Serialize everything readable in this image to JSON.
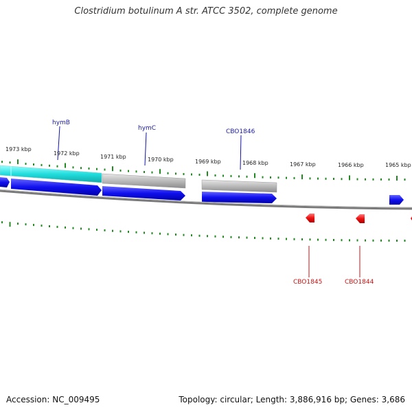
{
  "title": "Clostridium botulinum A str. ATCC 3502, complete genome",
  "footer": {
    "accession": "Accession: NC_009495",
    "topology": "Topology: circular; Length: 3,886,916 bp; Genes: 3,686"
  },
  "scale": {
    "ticks": [
      "1973 kbp",
      "1972 kbp",
      "1971 kbp",
      "1970 kbp",
      "1969 kbp",
      "1968 kbp",
      "1967 kbp",
      "1966 kbp",
      "1965 kbp"
    ]
  },
  "genes": {
    "forward": [
      "hymB",
      "hymC",
      "CBO1846"
    ],
    "reverse": [
      "CBO1845",
      "CBO1844"
    ]
  },
  "colors": {
    "forward_gene": "#1010ee",
    "reverse_gene": "#ee1010",
    "cyan_feature": "#22dddd",
    "gray_feature": "#bbbbbb",
    "backbone": "#777777",
    "tick": "#228822"
  }
}
